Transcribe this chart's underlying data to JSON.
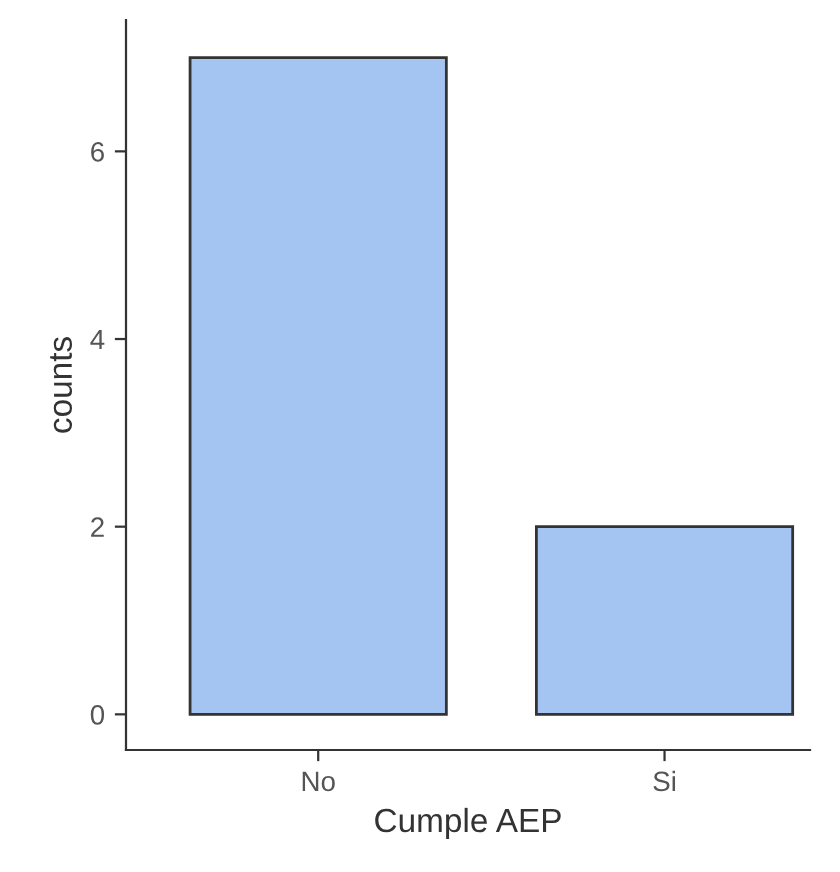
{
  "chart_data": {
    "type": "bar",
    "xlabel": "Cumple AEP",
    "ylabel": "counts",
    "categories": [
      "No",
      "Si"
    ],
    "values": [
      7,
      2
    ],
    "color": "#a4c4f1",
    "ylim": [
      -0.38,
      7.4
    ],
    "yticks": [
      0,
      2,
      4,
      6
    ],
    "grid": false
  }
}
